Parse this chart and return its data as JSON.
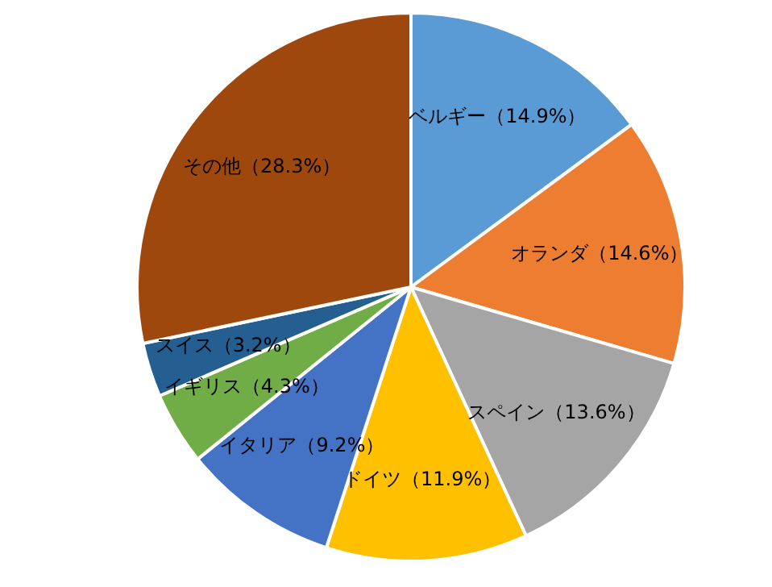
{
  "chart_data": {
    "type": "pie",
    "categories": [
      "ベルギー",
      "オランダ",
      "スペイン",
      "ドイツ",
      "イタリア",
      "イギリス",
      "スイス",
      "その他"
    ],
    "values": [
      14.9,
      14.6,
      13.6,
      11.9,
      9.2,
      4.3,
      3.2,
      28.3
    ],
    "colors": [
      "#5b9bd5",
      "#ed7d31",
      "#a5a5a5",
      "#ffc000",
      "#4472c4",
      "#70ad47",
      "#255e91",
      "#9e480e"
    ],
    "value_labels": [
      "（14.9%）",
      "（14.6%）",
      "（13.6%）",
      "（11.9%）",
      "（9.2%）",
      "（4.3%）",
      "（3.2%）",
      "（28.3%）"
    ]
  }
}
